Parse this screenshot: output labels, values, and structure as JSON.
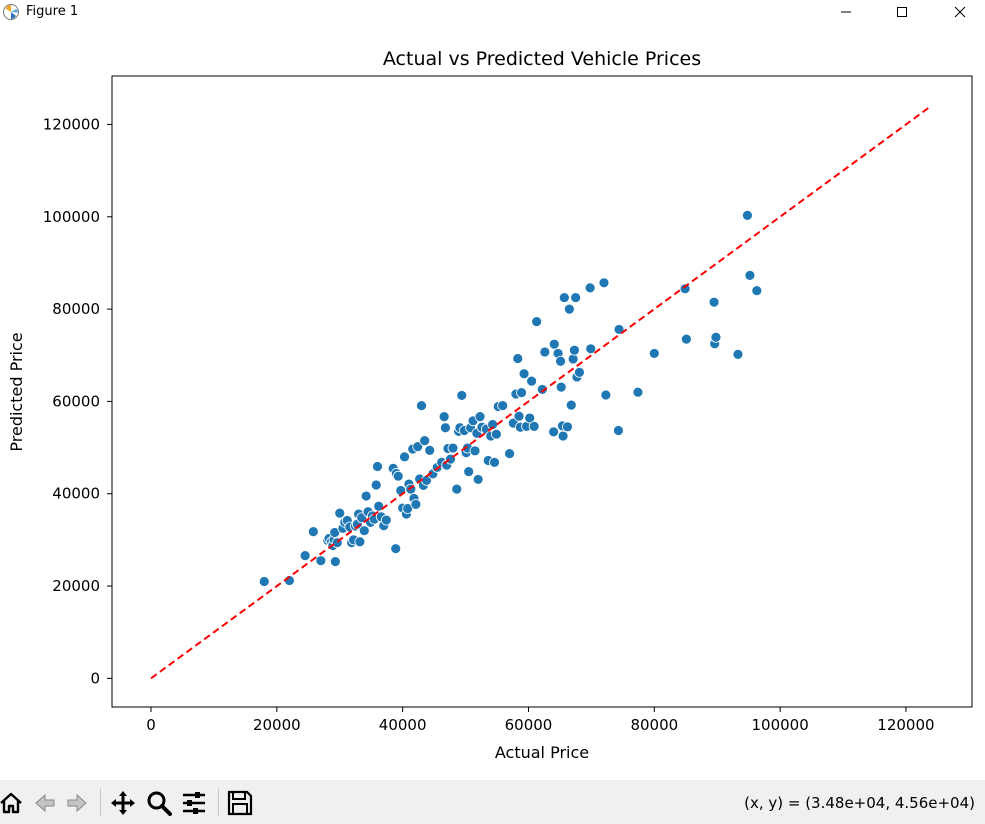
{
  "window": {
    "title": "Figure 1",
    "minimize_icon": "minimize-icon",
    "maximize_icon": "maximize-icon",
    "close_icon": "close-icon"
  },
  "toolbar": {
    "tools": [
      "home-icon",
      "back-arrow-icon",
      "forward-arrow-icon",
      "pan-icon",
      "zoom-icon",
      "configure-subplots-icon",
      "save-icon"
    ],
    "coords": "(x, y) = (3.48e+04, 4.56e+04)"
  },
  "colors": {
    "points": "#1f77b4",
    "reference_line": "#ff0000"
  },
  "chart_data": {
    "type": "scatter",
    "title": "Actual vs Predicted Vehicle Prices",
    "xlabel": "Actual Price",
    "ylabel": "Predicted Price",
    "xlim": [
      -6200,
      130500
    ],
    "ylim": [
      -6200,
      130500
    ],
    "xticks": [
      0,
      20000,
      40000,
      60000,
      80000,
      100000,
      120000
    ],
    "yticks": [
      0,
      20000,
      40000,
      60000,
      80000,
      100000,
      120000
    ],
    "grid": false,
    "reference_line": {
      "style": "dashed",
      "color": "red",
      "from": [
        0,
        0
      ],
      "to": [
        124000,
        124000
      ]
    },
    "points": [
      [
        18000,
        21000
      ],
      [
        22000,
        21200
      ],
      [
        24500,
        26600
      ],
      [
        25800,
        31800
      ],
      [
        27000,
        25500
      ],
      [
        28100,
        29900
      ],
      [
        28300,
        30300
      ],
      [
        28700,
        29600
      ],
      [
        28900,
        28800
      ],
      [
        29100,
        30100
      ],
      [
        29200,
        31600
      ],
      [
        29300,
        25300
      ],
      [
        29600,
        29400
      ],
      [
        30000,
        35800
      ],
      [
        30500,
        32500
      ],
      [
        30800,
        33800
      ],
      [
        31200,
        34200
      ],
      [
        31600,
        32800
      ],
      [
        31900,
        29400
      ],
      [
        32200,
        30000
      ],
      [
        32500,
        33000
      ],
      [
        32800,
        33400
      ],
      [
        33000,
        35600
      ],
      [
        33200,
        29600
      ],
      [
        33500,
        34800
      ],
      [
        33900,
        32000
      ],
      [
        34200,
        39500
      ],
      [
        34500,
        36100
      ],
      [
        34900,
        33800
      ],
      [
        35200,
        35200
      ],
      [
        35500,
        34500
      ],
      [
        35800,
        41900
      ],
      [
        36000,
        45900
      ],
      [
        36200,
        37300
      ],
      [
        36600,
        35000
      ],
      [
        37000,
        33100
      ],
      [
        37400,
        34300
      ],
      [
        38500,
        45500
      ],
      [
        38900,
        28100
      ],
      [
        39000,
        44400
      ],
      [
        39300,
        43800
      ],
      [
        39700,
        40700
      ],
      [
        40000,
        36900
      ],
      [
        40300,
        48000
      ],
      [
        40600,
        35600
      ],
      [
        40800,
        36800
      ],
      [
        41000,
        42100
      ],
      [
        41300,
        41000
      ],
      [
        41600,
        49700
      ],
      [
        41800,
        39000
      ],
      [
        42100,
        37700
      ],
      [
        42400,
        50200
      ],
      [
        42700,
        43200
      ],
      [
        43000,
        59100
      ],
      [
        43300,
        41800
      ],
      [
        43500,
        51500
      ],
      [
        43800,
        42900
      ],
      [
        44300,
        49400
      ],
      [
        44800,
        44300
      ],
      [
        45500,
        45700
      ],
      [
        46200,
        46800
      ],
      [
        46600,
        56700
      ],
      [
        46800,
        54300
      ],
      [
        47000,
        46200
      ],
      [
        47200,
        49800
      ],
      [
        47600,
        47500
      ],
      [
        48000,
        49900
      ],
      [
        48600,
        41000
      ],
      [
        48900,
        53500
      ],
      [
        49100,
        54300
      ],
      [
        49400,
        61300
      ],
      [
        49800,
        53700
      ],
      [
        50100,
        48900
      ],
      [
        50300,
        49900
      ],
      [
        50500,
        44800
      ],
      [
        50800,
        54300
      ],
      [
        51200,
        55800
      ],
      [
        51500,
        49300
      ],
      [
        51800,
        53100
      ],
      [
        52000,
        43100
      ],
      [
        52300,
        56700
      ],
      [
        52600,
        54400
      ],
      [
        53300,
        54000
      ],
      [
        53600,
        47200
      ],
      [
        54000,
        52500
      ],
      [
        54300,
        55000
      ],
      [
        54600,
        46800
      ],
      [
        54900,
        52900
      ],
      [
        55200,
        58900
      ],
      [
        55900,
        59100
      ],
      [
        57000,
        48700
      ],
      [
        57600,
        55300
      ],
      [
        58000,
        61600
      ],
      [
        58300,
        69300
      ],
      [
        58500,
        56800
      ],
      [
        58700,
        54400
      ],
      [
        58900,
        61900
      ],
      [
        59300,
        66000
      ],
      [
        59700,
        54600
      ],
      [
        60200,
        56400
      ],
      [
        60500,
        64400
      ],
      [
        60900,
        54600
      ],
      [
        61300,
        77300
      ],
      [
        62200,
        62600
      ],
      [
        62600,
        70700
      ],
      [
        64000,
        53400
      ],
      [
        64100,
        72400
      ],
      [
        64700,
        70400
      ],
      [
        65100,
        68700
      ],
      [
        65200,
        63100
      ],
      [
        65400,
        54700
      ],
      [
        65500,
        52500
      ],
      [
        65700,
        82500
      ],
      [
        66200,
        54500
      ],
      [
        66500,
        80000
      ],
      [
        66800,
        59200
      ],
      [
        67100,
        69200
      ],
      [
        67300,
        71100
      ],
      [
        67500,
        82500
      ],
      [
        67700,
        65300
      ],
      [
        68100,
        66300
      ],
      [
        69800,
        84600
      ],
      [
        69900,
        71400
      ],
      [
        72000,
        85700
      ],
      [
        72300,
        61400
      ],
      [
        74300,
        53700
      ],
      [
        74400,
        75600
      ],
      [
        77400,
        62000
      ],
      [
        80000,
        70400
      ],
      [
        84900,
        84400
      ],
      [
        85100,
        73500
      ],
      [
        89500,
        81500
      ],
      [
        89600,
        72500
      ],
      [
        89800,
        73900
      ],
      [
        93300,
        70200
      ],
      [
        94800,
        100300
      ],
      [
        95200,
        87300
      ],
      [
        96300,
        84000
      ]
    ]
  }
}
